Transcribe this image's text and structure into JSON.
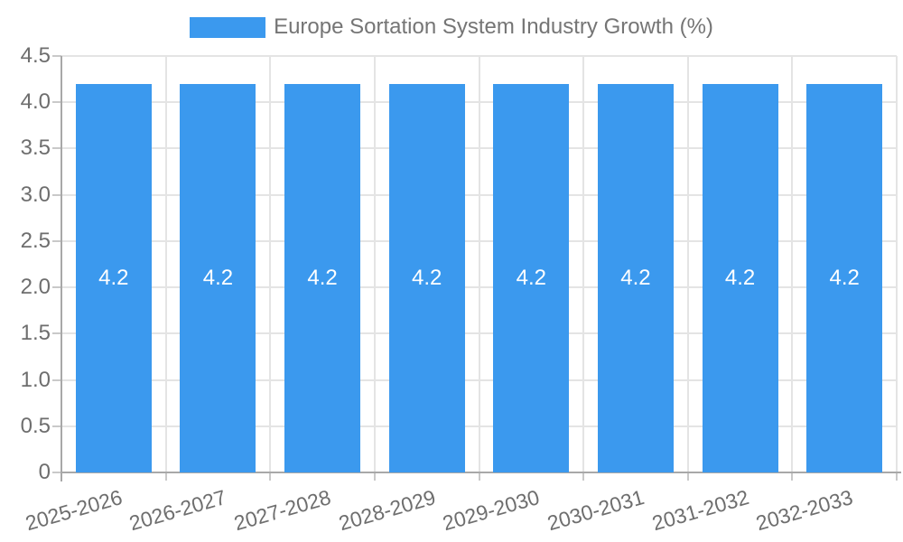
{
  "chart_data": {
    "type": "bar",
    "title": "Europe Sortation System Industry Growth (%)",
    "categories": [
      "2025-2026",
      "2026-2027",
      "2027-2028",
      "2028-2029",
      "2029-2030",
      "2030-2031",
      "2031-2032",
      "2032-2033"
    ],
    "values": [
      4.2,
      4.2,
      4.2,
      4.2,
      4.2,
      4.2,
      4.2,
      4.2
    ],
    "bar_labels": [
      "4.2",
      "4.2",
      "4.2",
      "4.2",
      "4.2",
      "4.2",
      "4.2",
      "4.2"
    ],
    "xlabel": "",
    "ylabel": "",
    "ylim": [
      0,
      4.5
    ],
    "yticks": [
      0,
      0.5,
      1.0,
      1.5,
      2.0,
      2.5,
      3.0,
      3.5,
      4.0,
      4.5
    ],
    "ytick_labels": [
      "0",
      "0.5",
      "1.0",
      "1.5",
      "2.0",
      "2.5",
      "3.0",
      "3.5",
      "4.0",
      "4.5"
    ],
    "grid": true,
    "legend": {
      "position": "top",
      "label": "Europe Sortation System Industry Growth (%)"
    },
    "colors": {
      "bar": "#3B99EE",
      "bar_label": "#FFFFFF",
      "gridline": "#E4E4E4",
      "tick": "#C9C9C9",
      "axis": "#A8A8A8",
      "axis_text": "#6E6E6E",
      "legend_text": "#757575",
      "background": "#FFFFFF"
    }
  }
}
